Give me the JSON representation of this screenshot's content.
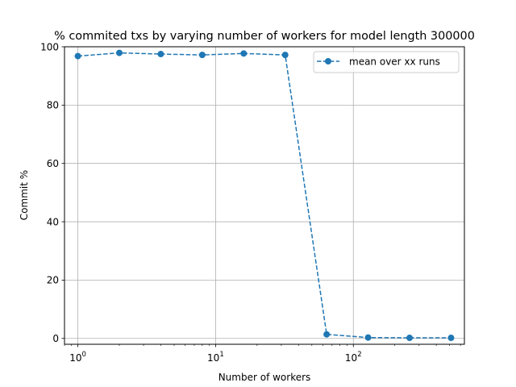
{
  "chart_data": {
    "type": "line",
    "title": "% commited txs by varying number of workers for model length 300000",
    "xlabel": "Number of workers",
    "ylabel": "Commit %",
    "xscale": "log",
    "xlim": [
      0.8,
      640
    ],
    "ylim": [
      -2,
      100
    ],
    "grid": true,
    "legend_position": "top-right",
    "x_ticks": [
      {
        "base": "10",
        "exp": "0",
        "value": 1
      },
      {
        "base": "10",
        "exp": "1",
        "value": 10
      },
      {
        "base": "10",
        "exp": "2",
        "value": 100
      }
    ],
    "y_ticks": [
      "0",
      "20",
      "40",
      "60",
      "80",
      "100"
    ],
    "series": [
      {
        "name": "mean over xx runs",
        "color": "#1f77b4",
        "linestyle": "dashed",
        "marker": "circle",
        "x": [
          1,
          2,
          4,
          8,
          16,
          32,
          64,
          128,
          256,
          512
        ],
        "y": [
          96.8,
          97.9,
          97.5,
          97.2,
          97.7,
          97.2,
          1.4,
          0.3,
          0.2,
          0.2
        ]
      }
    ]
  }
}
